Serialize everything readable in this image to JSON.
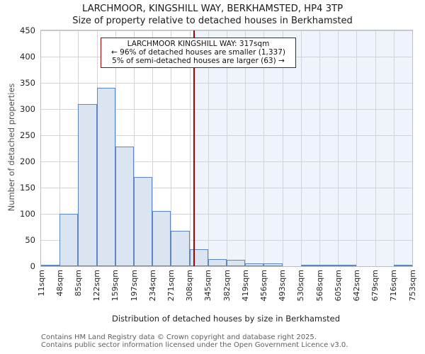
{
  "header": {
    "title": "LARCHMOOR, KINGSHILL WAY, BERKHAMSTED, HP4 3TP",
    "subtitle": "Size of property relative to detached houses in Berkhamsted"
  },
  "annotation": {
    "line1": "LARCHMOOR KINGSHILL WAY: 317sqm",
    "line2": "← 96% of detached houses are smaller (1,337)",
    "line3": "5% of semi-detached houses are larger (63) →"
  },
  "footer": {
    "line1": "Contains HM Land Registry data © Crown copyright and database right 2025.",
    "line2": "Contains public sector information licensed under the Open Government Licence v3.0."
  },
  "chart_data": {
    "type": "bar",
    "title": "LARCHMOOR, KINGSHILL WAY, BERKHAMSTED, HP4 3TP",
    "subtitle": "Size of property relative to detached houses in Berkhamsted",
    "xlabel": "Distribution of detached houses by size in Berkhamsted",
    "ylabel": "Number of detached properties",
    "categories": [
      "11sqm",
      "48sqm",
      "85sqm",
      "122sqm",
      "159sqm",
      "197sqm",
      "234sqm",
      "271sqm",
      "308sqm",
      "345sqm",
      "382sqm",
      "419sqm",
      "456sqm",
      "493sqm",
      "530sqm",
      "568sqm",
      "605sqm",
      "642sqm",
      "679sqm",
      "716sqm",
      "753sqm"
    ],
    "values": [
      3,
      100,
      310,
      340,
      228,
      170,
      105,
      68,
      33,
      13,
      12,
      6,
      5,
      0,
      1,
      1,
      1,
      0,
      0,
      1
    ],
    "x_min": 11,
    "x_max": 753,
    "ylim": [
      0,
      450
    ],
    "yticks": [
      0,
      50,
      100,
      150,
      200,
      250,
      300,
      350,
      400,
      450
    ],
    "grid": true,
    "legend_position": "none",
    "marker": {
      "value": 317,
      "label": "317sqm"
    },
    "colors": {
      "bar_fill": "#dbe5f1",
      "bar_edge": "#5b87c5",
      "marker_line": "#aa0000",
      "shade_right_of_marker": "#eff3fb",
      "grid": "#d3d3d8"
    }
  }
}
